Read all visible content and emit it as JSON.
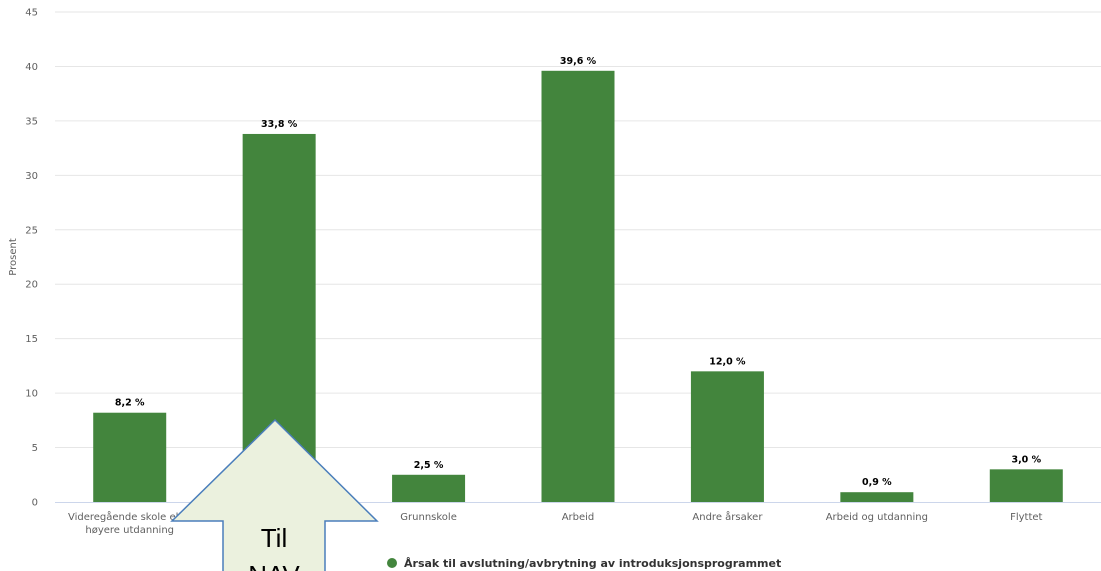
{
  "chart_data": {
    "type": "bar",
    "categories": [
      "Videregående skole eller høyere utdanning",
      "Til NAV",
      "Grunnskole",
      "Arbeid",
      "Andre årsaker",
      "Arbeid og utdanning",
      "Flyttet"
    ],
    "category_display": [
      [
        "Videregående skole eller",
        "høyere utdanning"
      ],
      [
        ""
      ],
      [
        "Grunnskole"
      ],
      [
        "Arbeid"
      ],
      [
        "Andre årsaker"
      ],
      [
        "Arbeid og utdanning"
      ],
      [
        "Flyttet"
      ]
    ],
    "series": [
      {
        "name": "Årsak til avslutning/avbrytning av introduksjonsprogrammet",
        "values": [
          8.2,
          33.8,
          2.5,
          39.6,
          12.0,
          0.9,
          3.0
        ],
        "labels": [
          "8,2 %",
          "33,8 %",
          "2,5 %",
          "39,6 %",
          "12,0 %",
          "0,9 %",
          "3,0 %"
        ]
      }
    ],
    "ylabel": "Prosent",
    "ylim": [
      0,
      45
    ],
    "yticks": [
      0,
      5,
      10,
      15,
      20,
      25,
      30,
      35,
      40,
      45
    ],
    "grid": true,
    "legend_position": "bottom-center",
    "colors": {
      "bar": "#43853d",
      "grid": "#e6e6e6",
      "axis": "#ccd6eb"
    }
  },
  "callout": {
    "lines": [
      "Til",
      "NAV"
    ],
    "fill": "#ebf1de",
    "stroke": "#4a7ebb"
  }
}
